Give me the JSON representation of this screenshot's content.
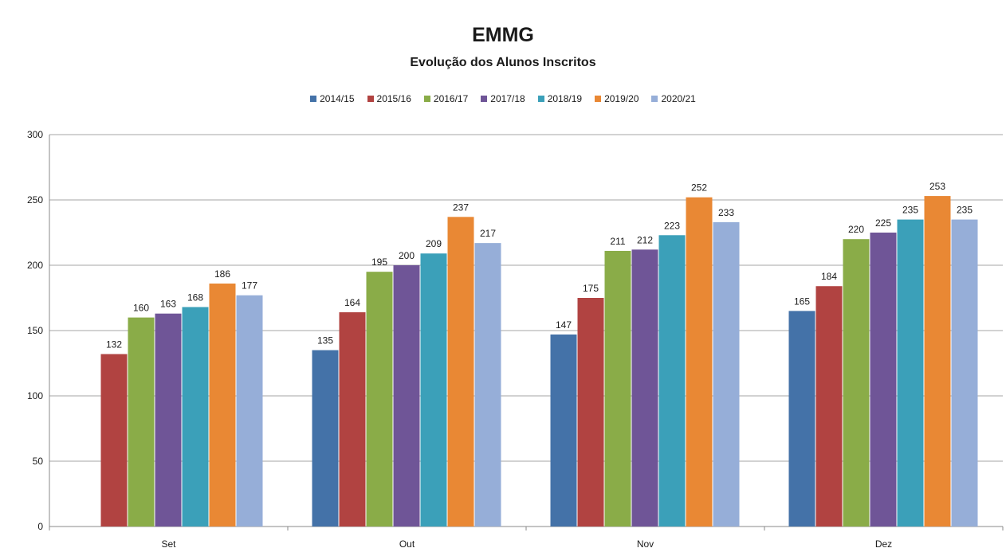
{
  "chart_data": {
    "type": "bar",
    "title": "EMMG",
    "subtitle": "Evolução dos Alunos Inscritos",
    "xlabel": "",
    "ylabel": "",
    "categories": [
      "Set",
      "Out",
      "Nov",
      "Dez"
    ],
    "ylim": [
      0,
      300
    ],
    "yticks": [
      0,
      50,
      100,
      150,
      200,
      250,
      300
    ],
    "grid": true,
    "legend_position": "top",
    "series": [
      {
        "name": "2014/15",
        "color": "#4472a8",
        "values": [
          null,
          135,
          147,
          165
        ]
      },
      {
        "name": "2015/16",
        "color": "#b14341",
        "values": [
          132,
          164,
          175,
          184
        ]
      },
      {
        "name": "2016/17",
        "color": "#8aac48",
        "values": [
          160,
          195,
          211,
          220
        ]
      },
      {
        "name": "2017/18",
        "color": "#6f5597",
        "values": [
          163,
          200,
          212,
          225
        ]
      },
      {
        "name": "2018/19",
        "color": "#3ba0b9",
        "values": [
          168,
          209,
          223,
          235
        ]
      },
      {
        "name": "2019/20",
        "color": "#e98834",
        "values": [
          186,
          237,
          252,
          253
        ]
      },
      {
        "name": "2020/21",
        "color": "#96aed8",
        "values": [
          177,
          217,
          233,
          235
        ]
      }
    ]
  }
}
